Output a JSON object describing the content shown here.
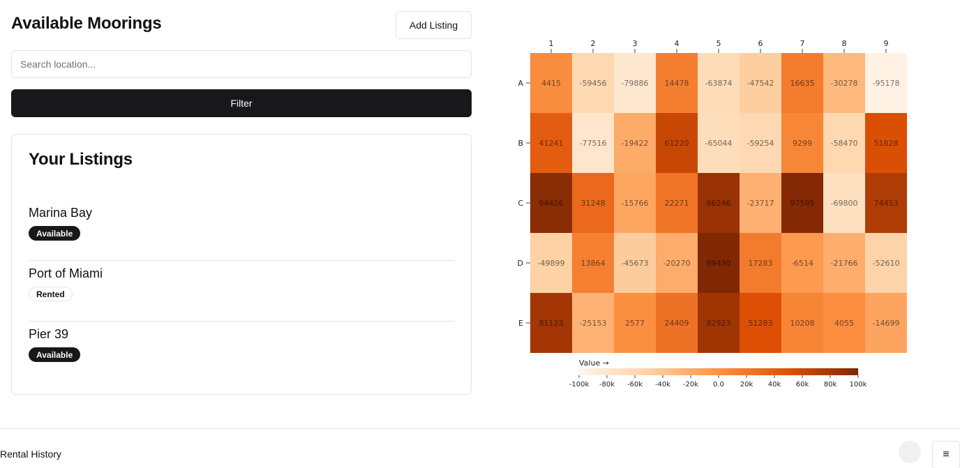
{
  "header": {
    "title": "Available Moorings",
    "add_listing_label": "Add Listing"
  },
  "search": {
    "placeholder": "Search location...",
    "value": ""
  },
  "filter": {
    "label": "Filter"
  },
  "listings": {
    "title": "Your Listings",
    "items": [
      {
        "name": "Marina Bay",
        "status": "Available"
      },
      {
        "name": "Port of Miami",
        "status": "Rented"
      },
      {
        "name": "Pier 39",
        "status": "Available"
      }
    ]
  },
  "chart_data": {
    "type": "heatmap",
    "x_labels": [
      "1",
      "2",
      "3",
      "4",
      "5",
      "6",
      "7",
      "8",
      "9"
    ],
    "y_labels": [
      "A",
      "B",
      "C",
      "D",
      "E"
    ],
    "values": [
      [
        4415,
        -59456,
        -79886,
        14478,
        -63874,
        -47542,
        16635,
        -30278,
        -95178
      ],
      [
        41241,
        -77516,
        -19422,
        61220,
        -65044,
        -59254,
        9299,
        -58470,
        51828
      ],
      [
        94426,
        31248,
        -15766,
        22271,
        86246,
        -23717,
        97595,
        -69800,
        74453
      ],
      [
        -49899,
        13864,
        -45673,
        -20270,
        99430,
        17283,
        -6514,
        -21766,
        -52610
      ],
      [
        81123,
        -25153,
        2577,
        24409,
        82923,
        51283,
        10208,
        4055,
        -14699
      ]
    ],
    "color_scale": {
      "name": "Oranges",
      "domain": [
        -100000,
        100000
      ],
      "colors": [
        "#fff5eb",
        "#fdd2a5",
        "#fd9243",
        "#df5005",
        "#7f2704"
      ]
    },
    "legend": {
      "label": "Value →",
      "ticks": [
        "-100k",
        "-80k",
        "-60k",
        "-40k",
        "-20k",
        "0.0",
        "20k",
        "40k",
        "60k",
        "80k",
        "100k"
      ],
      "tick_values": [
        -100000,
        -80000,
        -60000,
        -40000,
        -20000,
        0,
        20000,
        40000,
        60000,
        80000,
        100000
      ]
    }
  },
  "footer": {
    "history_label": "Rental History",
    "menu_icon": "≡"
  }
}
